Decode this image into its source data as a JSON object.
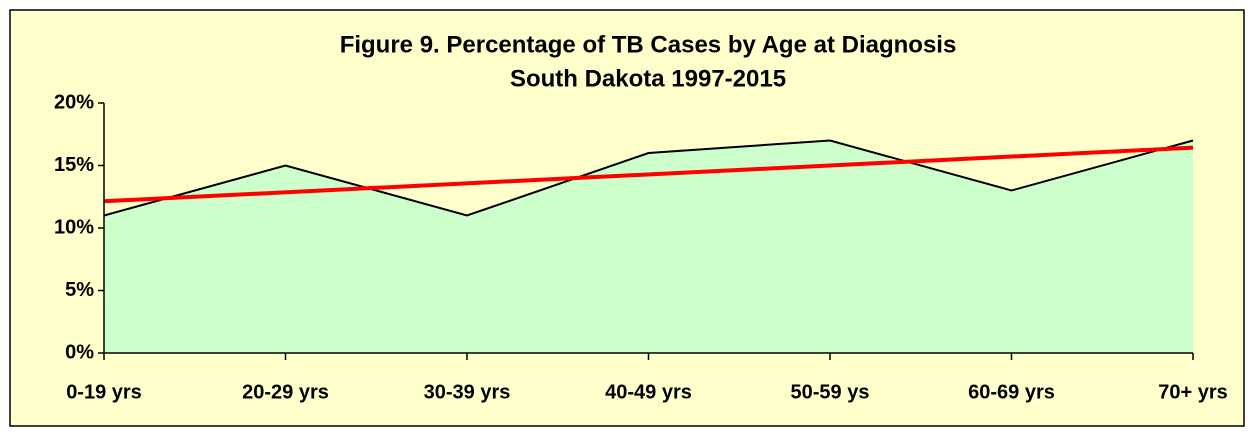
{
  "chart_data": {
    "type": "area",
    "title": "Figure 9.  Percentage of TB Cases by Age at Diagnosis",
    "subtitle": "South Dakota  1997-2015",
    "categories": [
      "0-19 yrs",
      "20-29 yrs",
      "30-39 yrs",
      "40-49 yrs",
      "50-59 ys",
      "60-69 yrs",
      "70+ yrs"
    ],
    "values": [
      11,
      15,
      11,
      16,
      17,
      13,
      17
    ],
    "color": "#ccffcc",
    "line_color": "#000000",
    "trendline": {
      "type": "linear",
      "color": "#ff0000"
    },
    "ylim": [
      0,
      20
    ],
    "yticks": [
      {
        "value": 0,
        "label": "0%"
      },
      {
        "value": 5,
        "label": "5%"
      },
      {
        "value": 10,
        "label": "10%"
      },
      {
        "value": 15,
        "label": "15%"
      },
      {
        "value": 20,
        "label": "20%"
      }
    ],
    "grid": false
  }
}
